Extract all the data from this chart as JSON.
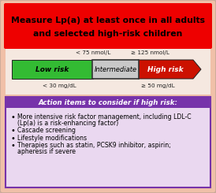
{
  "title_line1": "Measure Lp(a) at least once in all adults",
  "title_line2": "and selected high-risk children",
  "title_bg": "#ee0000",
  "title_text_color": "#000000",
  "outer_bg": "#f0c0a8",
  "low_risk_label": "Low risk",
  "intermediate_label": "Intermediate",
  "high_risk_label": "High risk",
  "threshold_left_top": "< 75 nmol/L",
  "threshold_right_top": "≥ 125 nmol/L",
  "threshold_left_bot": "< 30 mg/dL",
  "threshold_right_bot": "≥ 50 mg/dL",
  "action_title": "Action items to consider if high risk:",
  "action_bg": "#7733aa",
  "action_title_color": "#ffffff",
  "bullet_bg": "#ead8f0",
  "bar_bg": "#f5e8e0",
  "action_border": "#7733aa"
}
